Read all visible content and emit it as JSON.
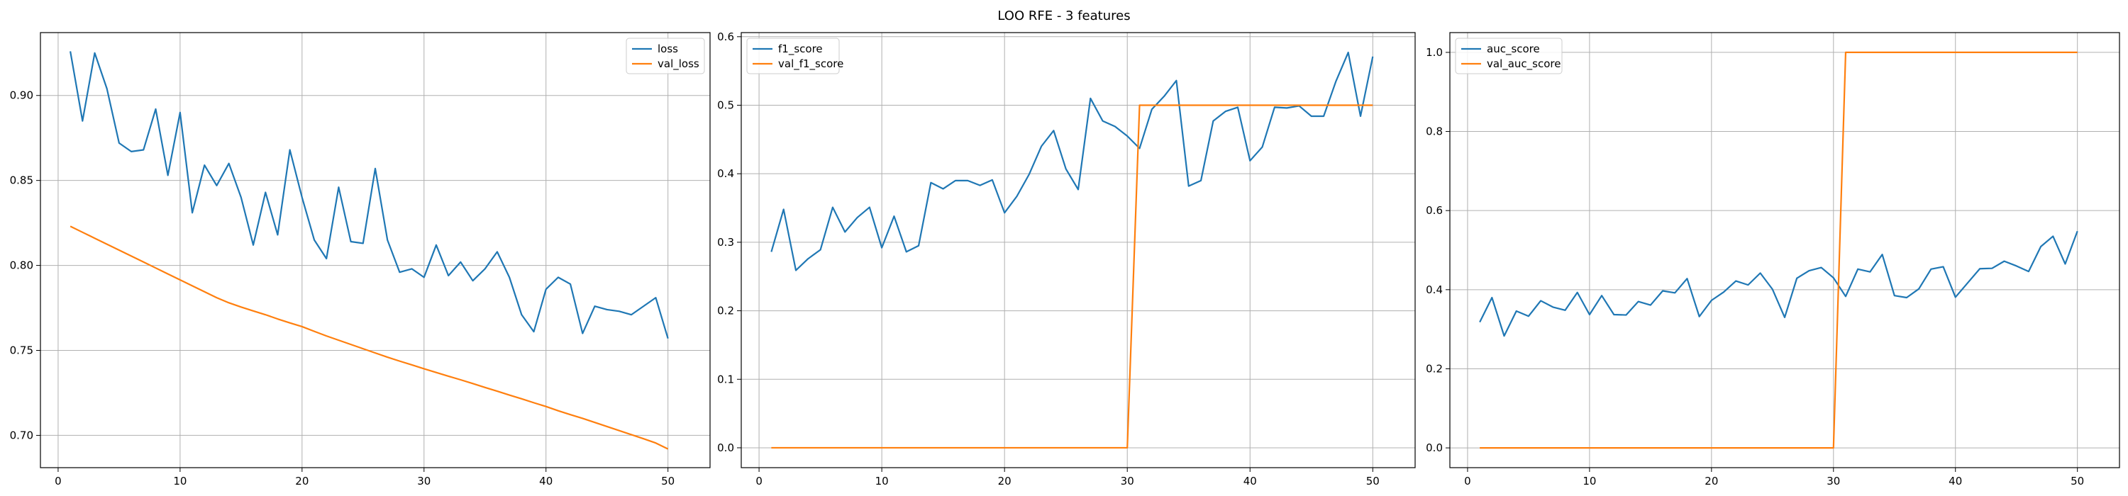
{
  "figure": {
    "suptitle": "LOO RFE - 3 features",
    "series_colors": {
      "train": "#1f77b4",
      "val": "#ff7f0e"
    }
  },
  "chart_data": [
    {
      "type": "line",
      "x": [
        1,
        2,
        3,
        4,
        5,
        6,
        7,
        8,
        9,
        10,
        11,
        12,
        13,
        14,
        15,
        16,
        17,
        18,
        19,
        20,
        21,
        22,
        23,
        24,
        25,
        26,
        27,
        28,
        29,
        30,
        31,
        32,
        33,
        34,
        35,
        36,
        37,
        38,
        39,
        40,
        41,
        42,
        43,
        44,
        45,
        46,
        47,
        48,
        49,
        50
      ],
      "xlim": [
        -1.45,
        53.45
      ],
      "xticks": [
        0,
        10,
        20,
        30,
        40,
        50
      ],
      "ylim": [
        0.681,
        0.937
      ],
      "yticks": [
        0.7,
        0.75,
        0.8,
        0.85,
        0.9
      ],
      "ytick_labels": [
        "0.70",
        "0.75",
        "0.80",
        "0.85",
        "0.90"
      ],
      "grid": true,
      "legend_position": "upper right",
      "series": [
        {
          "name": "loss",
          "color": "#1f77b4",
          "values": [
            0.926,
            0.885,
            0.925,
            0.904,
            0.872,
            0.867,
            0.868,
            0.892,
            0.853,
            0.89,
            0.831,
            0.859,
            0.847,
            0.86,
            0.84,
            0.812,
            0.843,
            0.818,
            0.868,
            0.84,
            0.815,
            0.804,
            0.846,
            0.814,
            0.813,
            0.857,
            0.815,
            0.796,
            0.798,
            0.793,
            0.812,
            0.794,
            0.802,
            0.791,
            0.798,
            0.808,
            0.793,
            0.771,
            0.761,
            0.786,
            0.793,
            0.789,
            0.76,
            0.776,
            0.774,
            0.773,
            0.771,
            0.776,
            0.781,
            0.757
          ]
        },
        {
          "name": "val_loss",
          "color": "#ff7f0e",
          "values": [
            0.823,
            0.8195,
            0.816,
            0.8125,
            0.809,
            0.8055,
            0.802,
            0.7985,
            0.795,
            0.7915,
            0.788,
            0.7845,
            0.781,
            0.778,
            0.7755,
            0.7732,
            0.771,
            0.7685,
            0.7662,
            0.764,
            0.7612,
            0.7585,
            0.756,
            0.7535,
            0.751,
            0.7485,
            0.746,
            0.7437,
            0.7415,
            0.7392,
            0.737,
            0.7348,
            0.7327,
            0.7305,
            0.7282,
            0.726,
            0.7237,
            0.7215,
            0.7192,
            0.717,
            0.7145,
            0.7122,
            0.71,
            0.7076,
            0.7052,
            0.7028,
            0.7004,
            0.698,
            0.6955,
            0.692
          ]
        }
      ]
    },
    {
      "type": "line",
      "x": [
        1,
        2,
        3,
        4,
        5,
        6,
        7,
        8,
        9,
        10,
        11,
        12,
        13,
        14,
        15,
        16,
        17,
        18,
        19,
        20,
        21,
        22,
        23,
        24,
        25,
        26,
        27,
        28,
        29,
        30,
        31,
        32,
        33,
        34,
        35,
        36,
        37,
        38,
        39,
        40,
        41,
        42,
        43,
        44,
        45,
        46,
        47,
        48,
        49,
        50
      ],
      "xlim": [
        -1.45,
        53.45
      ],
      "xticks": [
        0,
        10,
        20,
        30,
        40,
        50
      ],
      "ylim": [
        -0.029,
        0.606
      ],
      "yticks": [
        0.0,
        0.1,
        0.2,
        0.3,
        0.4,
        0.5,
        0.6
      ],
      "ytick_labels": [
        "0.0",
        "0.1",
        "0.2",
        "0.3",
        "0.4",
        "0.5",
        "0.6"
      ],
      "grid": true,
      "legend_position": "upper left",
      "series": [
        {
          "name": "f1_score",
          "color": "#1f77b4",
          "values": [
            0.286,
            0.348,
            0.259,
            0.276,
            0.289,
            0.351,
            0.315,
            0.336,
            0.351,
            0.292,
            0.338,
            0.286,
            0.295,
            0.387,
            0.378,
            0.39,
            0.39,
            0.383,
            0.391,
            0.343,
            0.367,
            0.399,
            0.44,
            0.463,
            0.407,
            0.377,
            0.51,
            0.477,
            0.469,
            0.455,
            0.437,
            0.494,
            0.513,
            0.536,
            0.382,
            0.39,
            0.477,
            0.491,
            0.497,
            0.419,
            0.439,
            0.497,
            0.496,
            0.499,
            0.484,
            0.484,
            0.535,
            0.577,
            0.484,
            0.571
          ]
        },
        {
          "name": "val_f1_score",
          "color": "#ff7f0e",
          "values": [
            0,
            0,
            0,
            0,
            0,
            0,
            0,
            0,
            0,
            0,
            0,
            0,
            0,
            0,
            0,
            0,
            0,
            0,
            0,
            0,
            0,
            0,
            0,
            0,
            0,
            0,
            0,
            0,
            0,
            0,
            0.5,
            0.5,
            0.5,
            0.5,
            0.5,
            0.5,
            0.5,
            0.5,
            0.5,
            0.5,
            0.5,
            0.5,
            0.5,
            0.5,
            0.5,
            0.5,
            0.5,
            0.5,
            0.5,
            0.5
          ]
        }
      ]
    },
    {
      "type": "line",
      "x": [
        1,
        2,
        3,
        4,
        5,
        6,
        7,
        8,
        9,
        10,
        11,
        12,
        13,
        14,
        15,
        16,
        17,
        18,
        19,
        20,
        21,
        22,
        23,
        24,
        25,
        26,
        27,
        28,
        29,
        30,
        31,
        32,
        33,
        34,
        35,
        36,
        37,
        38,
        39,
        40,
        41,
        42,
        43,
        44,
        45,
        46,
        47,
        48,
        49,
        50
      ],
      "xlim": [
        -1.45,
        53.45
      ],
      "xticks": [
        0,
        10,
        20,
        30,
        40,
        50
      ],
      "ylim": [
        -0.05,
        1.05
      ],
      "yticks": [
        0.0,
        0.2,
        0.4,
        0.6,
        0.8,
        1.0
      ],
      "ytick_labels": [
        "0.0",
        "0.2",
        "0.4",
        "0.6",
        "0.8",
        "1.0"
      ],
      "grid": true,
      "legend_position": "upper left",
      "series": [
        {
          "name": "auc_score",
          "color": "#1f77b4",
          "values": [
            0.318,
            0.38,
            0.283,
            0.346,
            0.333,
            0.372,
            0.356,
            0.348,
            0.393,
            0.337,
            0.385,
            0.337,
            0.336,
            0.37,
            0.361,
            0.397,
            0.392,
            0.428,
            0.332,
            0.373,
            0.394,
            0.422,
            0.412,
            0.442,
            0.401,
            0.33,
            0.429,
            0.448,
            0.456,
            0.43,
            0.383,
            0.452,
            0.445,
            0.489,
            0.385,
            0.38,
            0.402,
            0.452,
            0.458,
            0.381,
            0.417,
            0.453,
            0.454,
            0.472,
            0.46,
            0.446,
            0.509,
            0.535,
            0.465,
            0.548
          ]
        },
        {
          "name": "val_auc_score",
          "color": "#ff7f0e",
          "values": [
            0,
            0,
            0,
            0,
            0,
            0,
            0,
            0,
            0,
            0,
            0,
            0,
            0,
            0,
            0,
            0,
            0,
            0,
            0,
            0,
            0,
            0,
            0,
            0,
            0,
            0,
            0,
            0,
            0,
            0,
            1,
            1,
            1,
            1,
            1,
            1,
            1,
            1,
            1,
            1,
            1,
            1,
            1,
            1,
            1,
            1,
            1,
            1,
            1,
            1
          ]
        }
      ]
    }
  ]
}
